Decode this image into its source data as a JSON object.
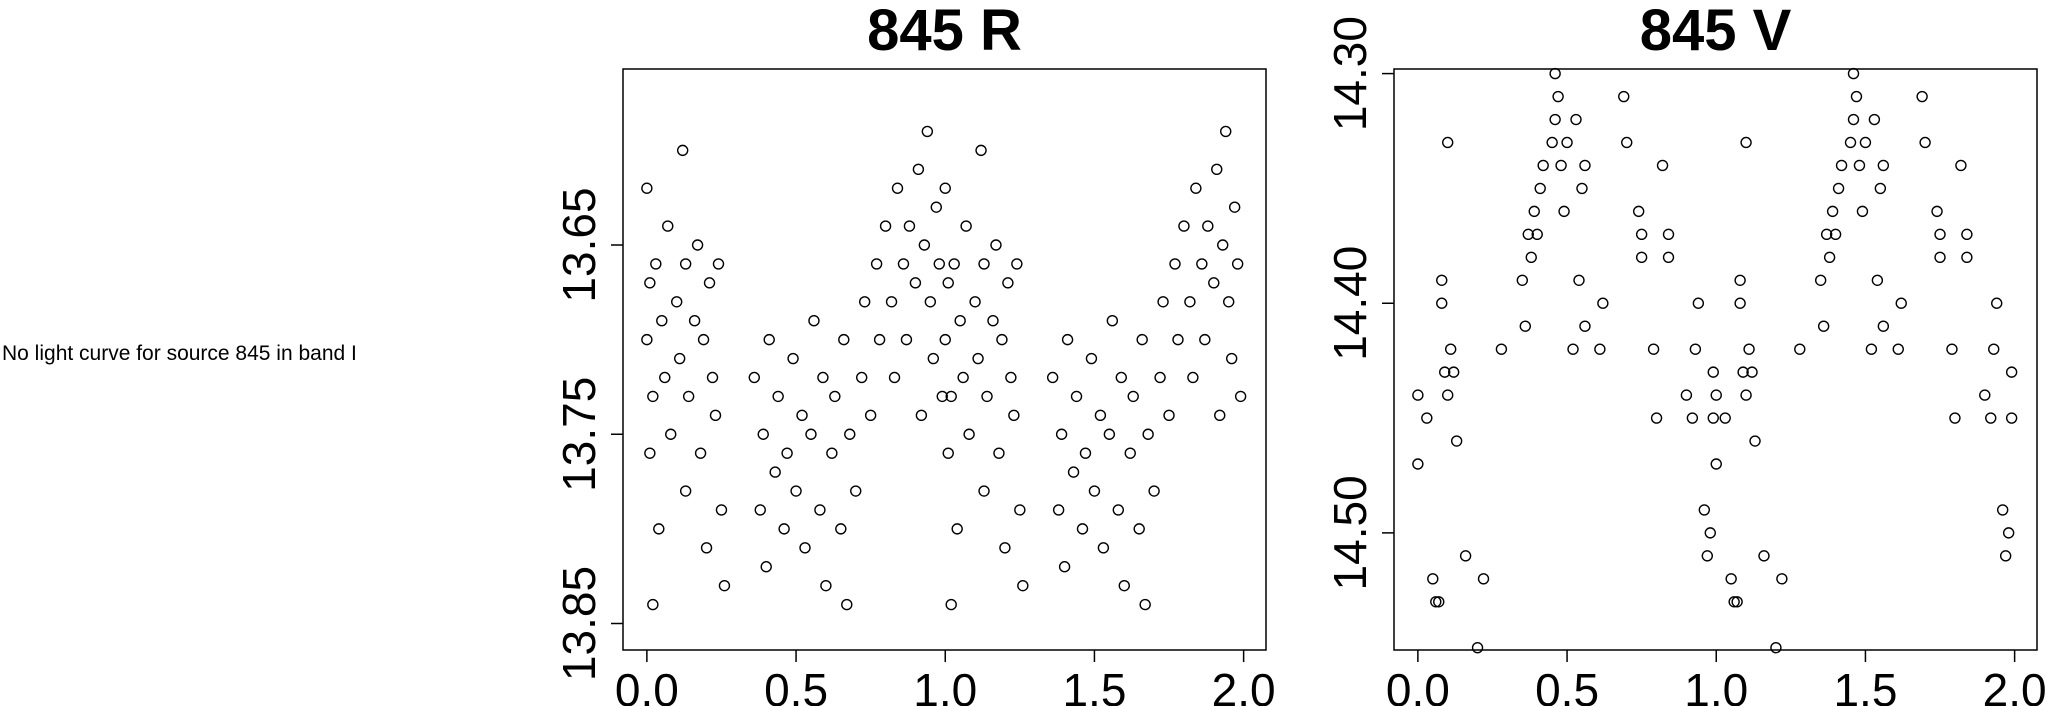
{
  "message": "No light curve for source 845 in band I",
  "chart_data": [
    {
      "type": "scatter",
      "title": "845 R",
      "color": "#000000",
      "invert_y": true,
      "xlim": [
        -0.08,
        2.075
      ],
      "ylim": [
        13.557,
        13.864
      ],
      "xticks": [
        {
          "value": 0,
          "label": "0.0"
        },
        {
          "value": 0.5,
          "label": "0.5"
        },
        {
          "value": 1,
          "label": "1.0"
        },
        {
          "value": 1.5,
          "label": "1.5"
        },
        {
          "value": 2,
          "label": "2.0"
        }
      ],
      "yticks": [
        13.65,
        13.75,
        13.85
      ],
      "x": [
        0,
        0,
        0.01,
        0.01,
        0.02,
        0.02,
        0.03,
        0.04,
        0.05,
        0.06,
        0.07,
        0.08,
        0.1,
        0.11,
        0.12,
        0.13,
        0.13,
        0.14,
        0.16,
        0.17,
        0.18,
        0.19,
        0.2,
        0.21,
        0.22,
        0.23,
        0.24,
        0.25,
        0.26,
        0.36,
        0.38,
        0.39,
        0.4,
        0.41,
        0.43,
        0.44,
        0.46,
        0.47,
        0.49,
        0.5,
        0.52,
        0.53,
        0.55,
        0.56,
        0.58,
        0.59,
        0.6,
        0.62,
        0.63,
        0.65,
        0.66,
        0.67,
        0.68,
        0.7,
        0.72,
        0.73,
        0.75,
        0.77,
        0.78,
        0.8,
        0.82,
        0.83,
        0.84,
        0.86,
        0.87,
        0.88,
        0.9,
        0.91,
        0.92,
        0.93,
        0.94,
        0.95,
        0.96,
        0.97,
        0.98,
        0.99,
        1,
        1,
        1.01,
        1.01,
        1.02,
        1.02,
        1.03,
        1.04,
        1.05,
        1.06,
        1.07,
        1.08,
        1.1,
        1.11,
        1.12,
        1.13,
        1.13,
        1.14,
        1.16,
        1.17,
        1.18,
        1.19,
        1.2,
        1.21,
        1.22,
        1.23,
        1.24,
        1.25,
        1.26,
        1.36,
        1.38,
        1.39,
        1.4,
        1.41,
        1.43,
        1.44,
        1.46,
        1.47,
        1.49,
        1.5,
        1.52,
        1.53,
        1.55,
        1.56,
        1.58,
        1.59,
        1.6,
        1.62,
        1.63,
        1.65,
        1.66,
        1.67,
        1.68,
        1.7,
        1.72,
        1.73,
        1.75,
        1.77,
        1.78,
        1.8,
        1.82,
        1.83,
        1.84,
        1.86,
        1.87,
        1.88,
        1.9,
        1.91,
        1.92,
        1.93,
        1.94,
        1.95,
        1.96,
        1.97,
        1.98,
        1.99
      ],
      "values": [
        13.7,
        13.62,
        13.76,
        13.67,
        13.84,
        13.73,
        13.66,
        13.8,
        13.69,
        13.72,
        13.64,
        13.75,
        13.68,
        13.71,
        13.6,
        13.66,
        13.78,
        13.73,
        13.69,
        13.65,
        13.76,
        13.7,
        13.81,
        13.67,
        13.72,
        13.74,
        13.66,
        13.79,
        13.83,
        13.72,
        13.79,
        13.75,
        13.82,
        13.7,
        13.77,
        13.73,
        13.8,
        13.76,
        13.71,
        13.78,
        13.74,
        13.81,
        13.75,
        13.69,
        13.79,
        13.72,
        13.83,
        13.76,
        13.73,
        13.8,
        13.7,
        13.84,
        13.75,
        13.78,
        13.72,
        13.68,
        13.74,
        13.66,
        13.7,
        13.64,
        13.68,
        13.72,
        13.62,
        13.66,
        13.7,
        13.64,
        13.67,
        13.61,
        13.74,
        13.65,
        13.59,
        13.68,
        13.71,
        13.63,
        13.66,
        13.73,
        13.7,
        13.62,
        13.76,
        13.67,
        13.84,
        13.73,
        13.66,
        13.8,
        13.69,
        13.72,
        13.64,
        13.75,
        13.68,
        13.71,
        13.6,
        13.66,
        13.78,
        13.73,
        13.69,
        13.65,
        13.76,
        13.7,
        13.81,
        13.67,
        13.72,
        13.74,
        13.66,
        13.79,
        13.83,
        13.72,
        13.79,
        13.75,
        13.82,
        13.7,
        13.77,
        13.73,
        13.8,
        13.76,
        13.71,
        13.78,
        13.74,
        13.81,
        13.75,
        13.69,
        13.79,
        13.72,
        13.83,
        13.76,
        13.73,
        13.8,
        13.7,
        13.84,
        13.75,
        13.78,
        13.72,
        13.68,
        13.74,
        13.66,
        13.7,
        13.64,
        13.68,
        13.72,
        13.62,
        13.66,
        13.7,
        13.64,
        13.67,
        13.61,
        13.74,
        13.65,
        13.59,
        13.68,
        13.71,
        13.63,
        13.66,
        13.73
      ]
    },
    {
      "type": "scatter",
      "title": "845 V",
      "color": "#000000",
      "invert_y": true,
      "xlim": [
        -0.08,
        2.075
      ],
      "ylim": [
        14.298,
        14.551
      ],
      "xticks": [
        {
          "value": 0,
          "label": "0.0"
        },
        {
          "value": 0.5,
          "label": "0.5"
        },
        {
          "value": 1,
          "label": "1.0"
        },
        {
          "value": 1.5,
          "label": "1.5"
        },
        {
          "value": 2,
          "label": "2.0"
        }
      ],
      "yticks": [
        {
          "value": 14.3,
          "label": "14.30"
        },
        {
          "value": 14.4,
          "label": "14.40"
        },
        {
          "value": 14.5,
          "label": "14.50"
        }
      ],
      "x": [
        0,
        0,
        0.03,
        0.05,
        0.06,
        0.07,
        0.08,
        0.08,
        0.09,
        0.1,
        0.1,
        0.11,
        0.12,
        0.13,
        0.16,
        0.2,
        0.22,
        0.28,
        0.35,
        0.36,
        0.37,
        0.38,
        0.39,
        0.4,
        0.41,
        0.42,
        0.45,
        0.46,
        0.46,
        0.47,
        0.48,
        0.49,
        0.5,
        0.52,
        0.53,
        0.54,
        0.55,
        0.56,
        0.56,
        0.61,
        0.62,
        0.69,
        0.7,
        0.74,
        0.75,
        0.75,
        0.79,
        0.8,
        0.82,
        0.84,
        0.84,
        0.9,
        0.92,
        0.93,
        0.94,
        0.96,
        0.97,
        0.98,
        0.99,
        0.99,
        1,
        1,
        1.03,
        1.05,
        1.06,
        1.07,
        1.08,
        1.08,
        1.09,
        1.1,
        1.1,
        1.11,
        1.12,
        1.13,
        1.16,
        1.2,
        1.22,
        1.28,
        1.35,
        1.36,
        1.37,
        1.38,
        1.39,
        1.4,
        1.41,
        1.42,
        1.45,
        1.46,
        1.46,
        1.47,
        1.48,
        1.49,
        1.5,
        1.52,
        1.53,
        1.54,
        1.55,
        1.56,
        1.56,
        1.61,
        1.62,
        1.69,
        1.7,
        1.74,
        1.75,
        1.75,
        1.79,
        1.8,
        1.82,
        1.84,
        1.84,
        1.9,
        1.92,
        1.93,
        1.94,
        1.96,
        1.97,
        1.98,
        1.99,
        1.99
      ],
      "values": [
        14.44,
        14.47,
        14.45,
        14.52,
        14.53,
        14.53,
        14.39,
        14.4,
        14.43,
        14.33,
        14.44,
        14.42,
        14.43,
        14.46,
        14.51,
        14.55,
        14.52,
        14.42,
        14.39,
        14.41,
        14.37,
        14.38,
        14.36,
        14.37,
        14.35,
        14.34,
        14.33,
        14.32,
        14.3,
        14.31,
        14.34,
        14.36,
        14.33,
        14.42,
        14.32,
        14.39,
        14.35,
        14.34,
        14.41,
        14.42,
        14.4,
        14.31,
        14.33,
        14.36,
        14.38,
        14.37,
        14.42,
        14.45,
        14.34,
        14.38,
        14.37,
        14.44,
        14.45,
        14.42,
        14.4,
        14.49,
        14.51,
        14.5,
        14.45,
        14.43,
        14.44,
        14.47,
        14.45,
        14.52,
        14.53,
        14.53,
        14.39,
        14.4,
        14.43,
        14.33,
        14.44,
        14.42,
        14.43,
        14.46,
        14.51,
        14.55,
        14.52,
        14.42,
        14.39,
        14.41,
        14.37,
        14.38,
        14.36,
        14.37,
        14.35,
        14.34,
        14.33,
        14.32,
        14.3,
        14.31,
        14.34,
        14.36,
        14.33,
        14.42,
        14.32,
        14.39,
        14.35,
        14.34,
        14.41,
        14.42,
        14.4,
        14.31,
        14.33,
        14.36,
        14.38,
        14.37,
        14.42,
        14.45,
        14.34,
        14.38,
        14.37,
        14.44,
        14.45,
        14.42,
        14.4,
        14.49,
        14.51,
        14.5,
        14.45,
        14.43
      ]
    }
  ]
}
